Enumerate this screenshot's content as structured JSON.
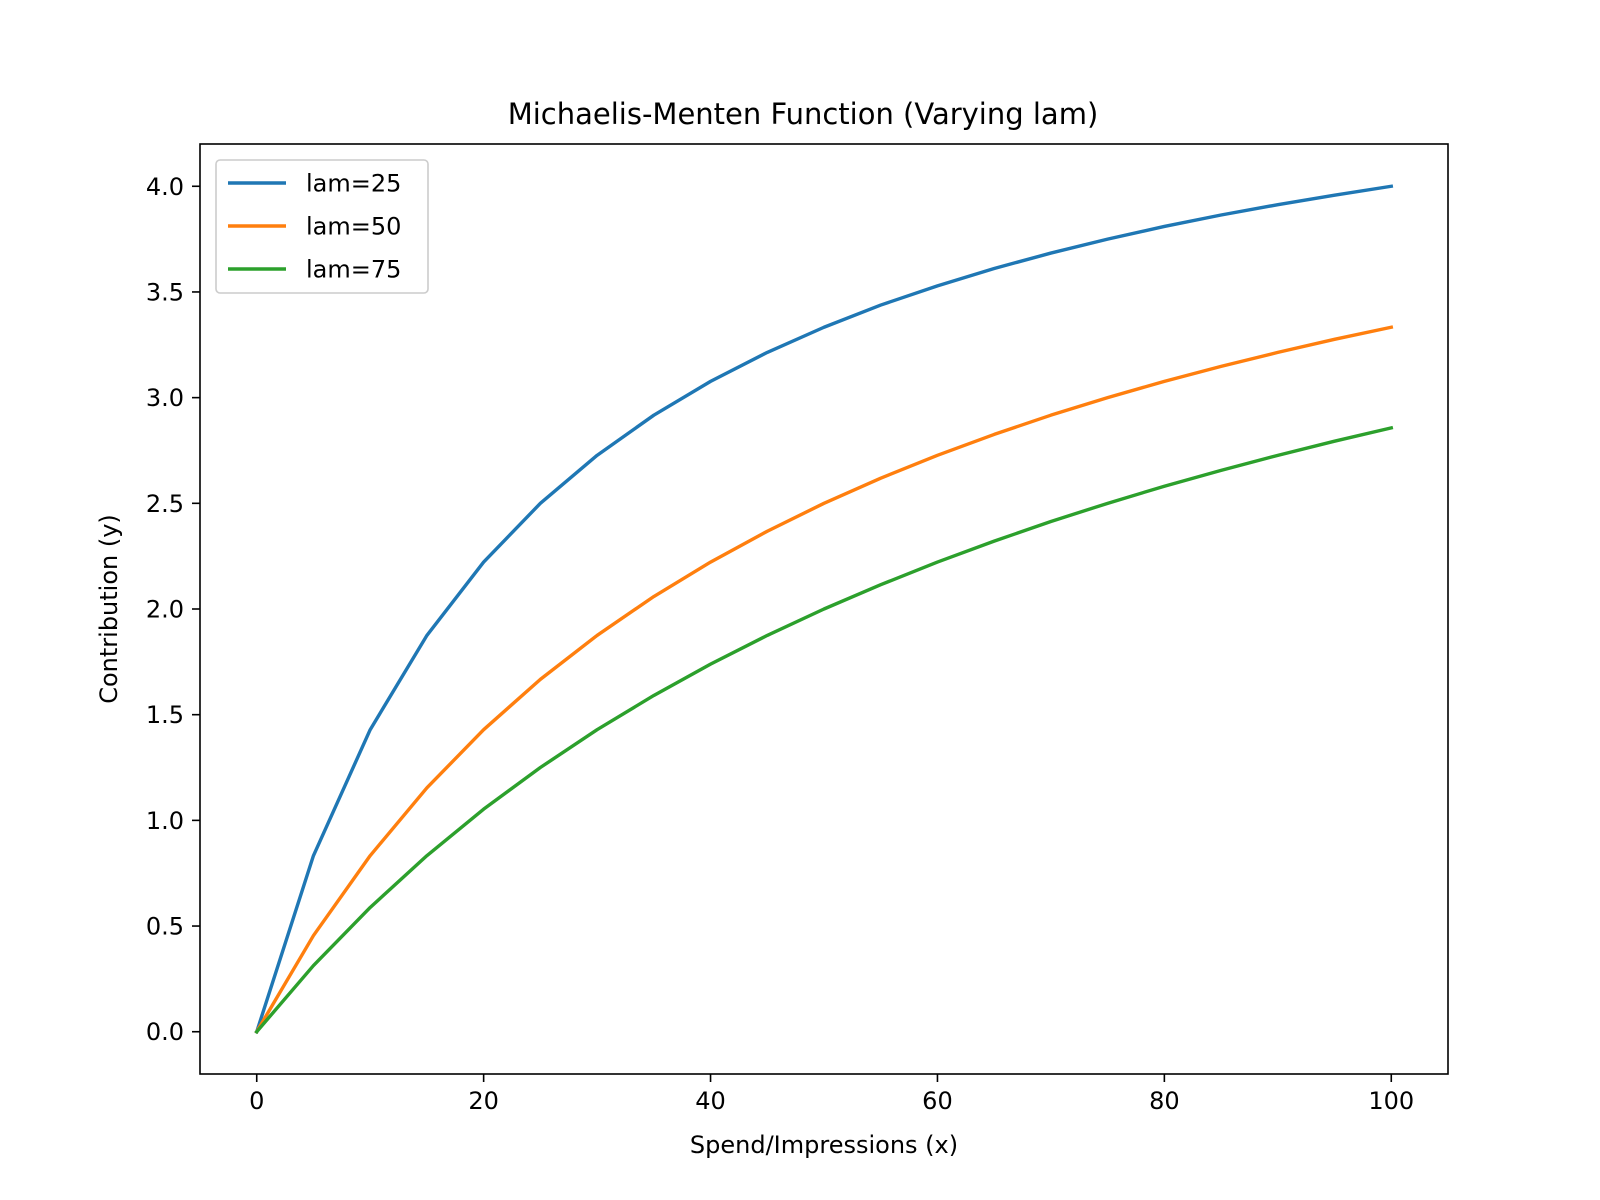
{
  "chart_data": {
    "type": "line",
    "title": "Michaelis-Menten Function (Varying lam)",
    "xlabel": "Spend/Impressions (x)",
    "ylabel": "Contribution (y)",
    "xlim": [
      -5,
      105
    ],
    "ylim": [
      -0.2,
      4.2
    ],
    "x_ticks": [
      0,
      20,
      40,
      60,
      80,
      100
    ],
    "x_tick_labels": [
      "0",
      "20",
      "40",
      "60",
      "80",
      "100"
    ],
    "y_ticks": [
      0.0,
      0.5,
      1.0,
      1.5,
      2.0,
      2.5,
      3.0,
      3.5,
      4.0
    ],
    "y_tick_labels": [
      "0.0",
      "0.5",
      "1.0",
      "1.5",
      "2.0",
      "2.5",
      "3.0",
      "3.5",
      "4.0"
    ],
    "grid": false,
    "legend_position": "top-left",
    "x": [
      0,
      5,
      10,
      15,
      20,
      25,
      30,
      35,
      40,
      45,
      50,
      55,
      60,
      65,
      70,
      75,
      80,
      85,
      90,
      95,
      100
    ],
    "series": [
      {
        "name": "lam=25",
        "color": "#1f77b4",
        "values": [
          0.0,
          0.833,
          1.429,
          1.875,
          2.222,
          2.5,
          2.727,
          2.917,
          3.077,
          3.214,
          3.333,
          3.438,
          3.529,
          3.611,
          3.684,
          3.75,
          3.81,
          3.864,
          3.913,
          3.958,
          4.0
        ]
      },
      {
        "name": "lam=50",
        "color": "#ff7f0e",
        "values": [
          0.0,
          0.455,
          0.833,
          1.154,
          1.429,
          1.667,
          1.875,
          2.059,
          2.222,
          2.368,
          2.5,
          2.619,
          2.727,
          2.826,
          2.917,
          3.0,
          3.077,
          3.148,
          3.214,
          3.276,
          3.333
        ]
      },
      {
        "name": "lam=75",
        "color": "#2ca02c",
        "values": [
          0.0,
          0.313,
          0.588,
          0.833,
          1.053,
          1.25,
          1.429,
          1.591,
          1.739,
          1.875,
          2.0,
          2.115,
          2.222,
          2.321,
          2.414,
          2.5,
          2.581,
          2.656,
          2.727,
          2.794,
          2.857
        ]
      }
    ]
  }
}
